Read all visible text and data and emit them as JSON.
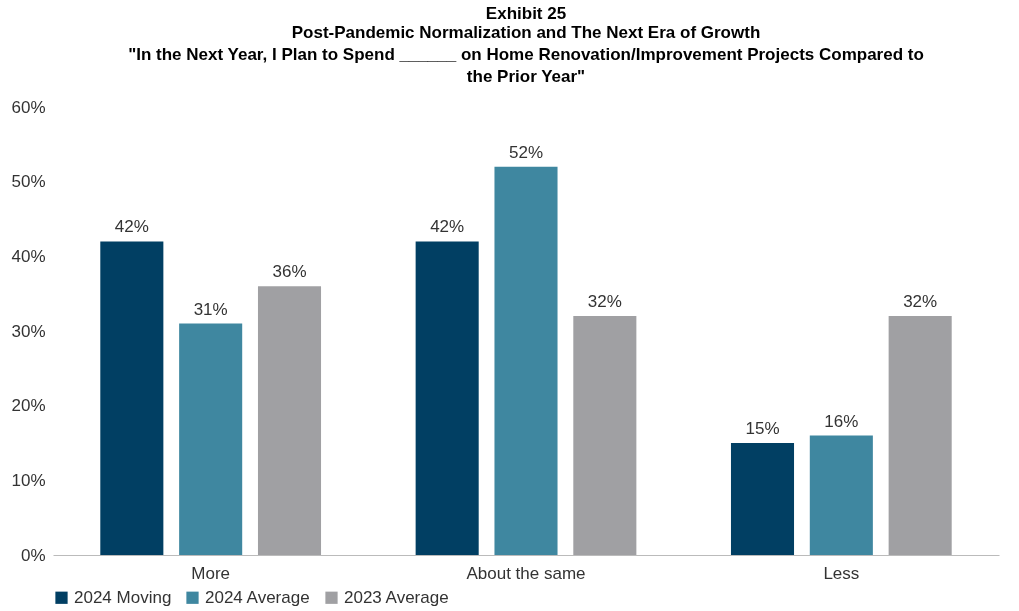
{
  "chart_data": {
    "type": "bar",
    "title": "Exhibit 25",
    "subtitle": "Post-Pandemic Normalization and The Next Era of Growth\n\"In the Next Year, I Plan to Spend ______ on Home Renovation/Improvement Projects Compared to the Prior Year\"",
    "categories": [
      "More",
      "About the same",
      "Less"
    ],
    "series": [
      {
        "name": "2024 Moving",
        "color": "#013f63",
        "values": [
          42,
          42,
          15
        ],
        "value_labels": [
          "42%",
          "42%",
          "15%"
        ]
      },
      {
        "name": "2024 Average",
        "color": "#3f87a0",
        "values": [
          31,
          52,
          16
        ],
        "value_labels": [
          "31%",
          "52%",
          "16%"
        ]
      },
      {
        "name": "2023 Average",
        "color": "#a0a0a3",
        "values": [
          36,
          32,
          32
        ],
        "value_labels": [
          "36%",
          "32%",
          "32%"
        ]
      }
    ],
    "ylim": [
      0,
      60
    ],
    "yticks": [
      {
        "value": 0,
        "label": "0%"
      },
      {
        "value": 10,
        "label": "10%"
      },
      {
        "value": 20,
        "label": "20%"
      },
      {
        "value": 30,
        "label": "30%"
      },
      {
        "value": 40,
        "label": "40%"
      },
      {
        "value": 50,
        "label": "50%"
      },
      {
        "value": 60,
        "label": "60%"
      }
    ],
    "grid": false,
    "legend": "bottom"
  }
}
